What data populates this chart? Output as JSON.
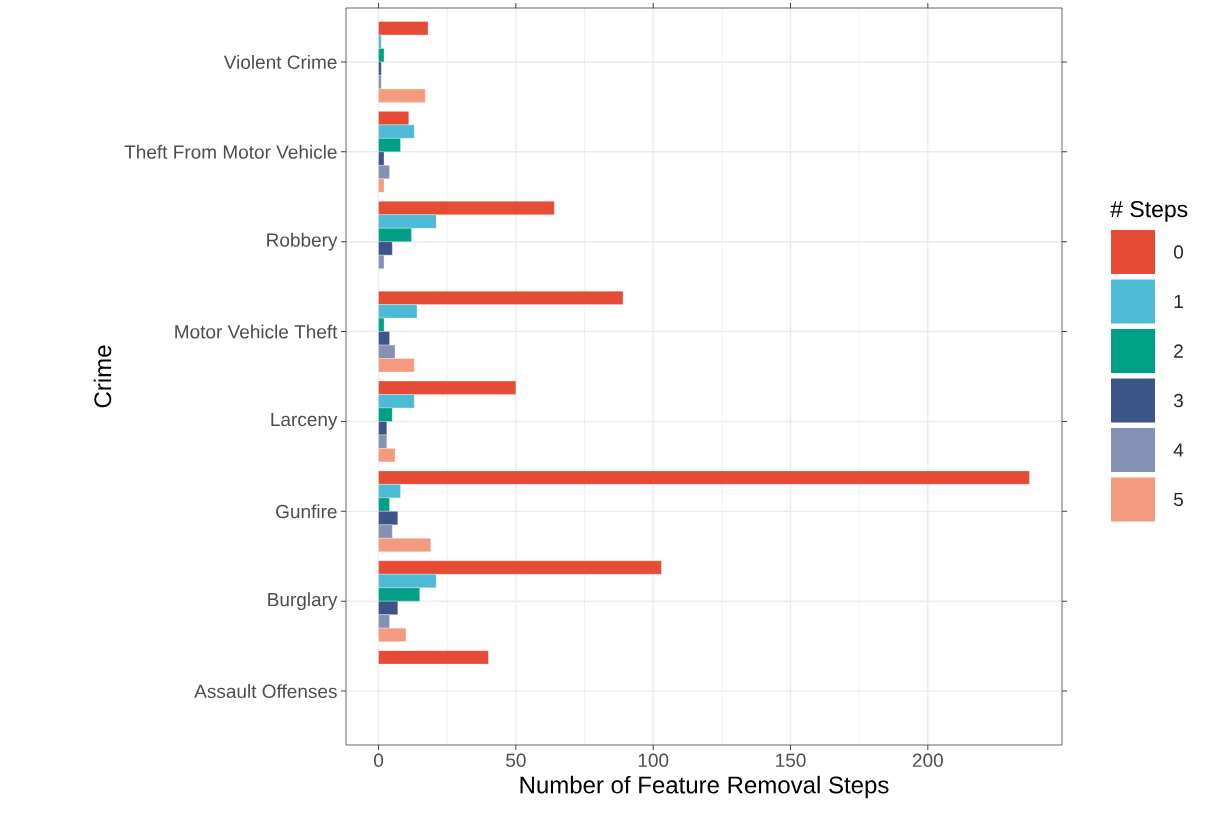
{
  "chart_data": {
    "type": "bar",
    "orientation": "horizontal",
    "xlabel": "Number of Feature Removal Steps",
    "ylabel": "Crime",
    "legend_title": "# Steps",
    "legend": "right",
    "grid": true,
    "categories": [
      "Violent Crime",
      "Theft From Motor Vehicle",
      "Robbery",
      "Motor Vehicle Theft",
      "Larceny",
      "Gunfire",
      "Burglary",
      "Assault Offenses"
    ],
    "xlim": [
      -11.85,
      248.85
    ],
    "xticks": [
      0,
      50,
      100,
      150,
      200
    ],
    "series": [
      {
        "name": "0",
        "color": "#e64b35",
        "values": [
          18,
          11,
          64,
          89,
          50,
          237,
          103,
          40
        ]
      },
      {
        "name": "1",
        "color": "#4dbbd5",
        "values": [
          1,
          13,
          21,
          14,
          13,
          8,
          21,
          null
        ]
      },
      {
        "name": "2",
        "color": "#00a087",
        "values": [
          2,
          8,
          12,
          2,
          5,
          4,
          15,
          null
        ]
      },
      {
        "name": "3",
        "color": "#3c5488",
        "values": [
          1,
          2,
          5,
          4,
          3,
          7,
          7,
          null
        ]
      },
      {
        "name": "4",
        "color": "#8491b4",
        "values": [
          1,
          4,
          2,
          6,
          3,
          5,
          4,
          null
        ]
      },
      {
        "name": "5",
        "color": "#f39b7f",
        "values": [
          17,
          2,
          null,
          13,
          6,
          19,
          10,
          null
        ]
      }
    ]
  }
}
